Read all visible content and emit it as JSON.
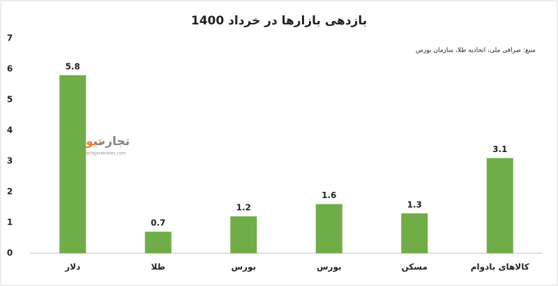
{
  "chart_data": {
    "type": "bar",
    "title": "بازدهی بازارها در خرداد 1400",
    "source": "منبع: صرافی ملی، اتحادیه طلا، سازمان بورس",
    "watermark": {
      "brand": "تجارت",
      "brand_accent": "نیوز",
      "url": "www.tejaratnews.com"
    },
    "categories": [
      "دلار",
      "طلا",
      "بورس",
      "بورس",
      "مسکن",
      "کالاهای بادوام"
    ],
    "values": [
      5.8,
      0.7,
      1.2,
      1.6,
      1.3,
      3.1
    ],
    "color": "#70ad47",
    "ylim": [
      0,
      7
    ],
    "yticks": [
      0,
      1,
      2,
      3,
      4,
      5,
      6,
      7
    ],
    "grid": false
  }
}
